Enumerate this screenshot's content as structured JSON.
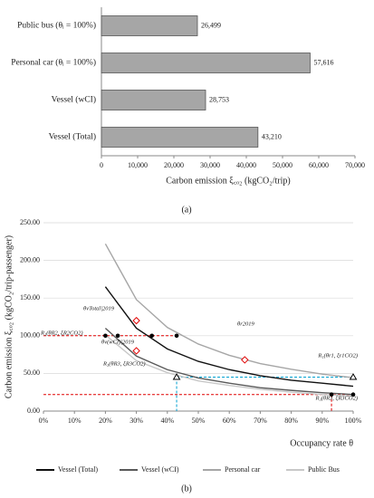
{
  "chart_data": [
    {
      "type": "bar",
      "orientation": "horizontal",
      "categories": [
        "Public bus (θᵢ = 100%)",
        "Personal car (θᵢ = 100%)",
        "Vessel (wCI)",
        "Vessel (Total)"
      ],
      "values": [
        26499,
        57616,
        28753,
        43210
      ],
      "value_labels": [
        "26,499",
        "57,616",
        "28,753",
        "43,210"
      ],
      "color": "#a6a6a6",
      "xlabel": "Carbon emission ξ꜀ₒ₂ (kgCO₂/trip)",
      "xlim": [
        0,
        70000
      ],
      "xticks": [
        0,
        {
          "value": 10000,
          "label": "10,000"
        },
        {
          "value": 20000,
          "label": "20,000"
        },
        {
          "value": 30000,
          "label": "30,000"
        },
        {
          "value": 40000,
          "label": "40,000"
        },
        {
          "value": 50000,
          "label": "50,000"
        },
        {
          "value": 60000,
          "label": "60,000"
        },
        {
          "value": 70000,
          "label": "70,000"
        }
      ],
      "caption": "(a)"
    },
    {
      "type": "line",
      "x": [
        20,
        30,
        40,
        50,
        60,
        70,
        80,
        90,
        100
      ],
      "series": [
        {
          "name": "Vessel (Total)",
          "color": "#111111",
          "values": [
            165,
            110,
            82.5,
            66,
            55,
            47,
            41,
            37,
            33
          ]
        },
        {
          "name": "Vessel (wCI)",
          "color": "#595959",
          "values": [
            110,
            73,
            55,
            44,
            37,
            31,
            27.5,
            24.4,
            22
          ]
        },
        {
          "name": "Personal car",
          "color": "#a6a6a6",
          "values": [
            222,
            148,
            111,
            89,
            74,
            63,
            55.5,
            49,
            44.4
          ]
        },
        {
          "name": "Public Bus",
          "color": "#c8c8c8",
          "values": [
            101,
            67,
            51,
            40,
            34,
            29,
            25,
            22,
            20
          ]
        }
      ],
      "reference_lines": [
        {
          "color": "#e00000",
          "x": [
            0,
            43
          ],
          "y": [
            100,
            100
          ]
        },
        {
          "color": "#e00000",
          "x": [
            0,
            100
          ],
          "y": [
            22,
            22
          ]
        },
        {
          "color": "#e00000",
          "x": [
            93,
            93
          ],
          "y": [
            22,
            0
          ]
        },
        {
          "color": "#00a0d0",
          "x": [
            43,
            100
          ],
          "y": [
            45,
            45
          ]
        },
        {
          "color": "#00a0d0",
          "x": [
            43,
            43
          ],
          "y": [
            45,
            0
          ]
        }
      ],
      "markers": [
        {
          "shape": "circle",
          "color": "#000000",
          "x": 20,
          "y": 100
        },
        {
          "shape": "circle",
          "color": "#000000",
          "x": 24,
          "y": 100
        },
        {
          "shape": "circle",
          "color": "#000000",
          "x": 35,
          "y": 100
        },
        {
          "shape": "circle",
          "color": "#000000",
          "x": 43,
          "y": 100
        },
        {
          "shape": "diamond",
          "color": "#e00000",
          "x": 30,
          "y": 120
        },
        {
          "shape": "diamond",
          "color": "#e00000",
          "x": 30,
          "y": 80
        },
        {
          "shape": "diamond",
          "color": "#e00000",
          "x": 65,
          "y": 68
        },
        {
          "shape": "triangle",
          "color": "#000000",
          "x": 43,
          "y": 45
        },
        {
          "shape": "triangle",
          "color": "#000000",
          "x": 100,
          "y": 45
        },
        {
          "shape": "circle",
          "color": "#000000",
          "x": 93,
          "y": 22
        },
        {
          "shape": "circle",
          "color": "#000000",
          "x": 100,
          "y": 22
        }
      ],
      "annotations": [
        "θvTotal|2019",
        "R₂(θR2, ξR2CO2)",
        "θv(wCI)|2019",
        "θr2019",
        "R₁(θr1, ξr1CO2)",
        "R₃(θR3, ξR3CO2)",
        "R₃(θR3, ξR3CO2)"
      ],
      "ylabel": "Carbon emission ξ꜀ₒ₂ (kgCO₂/trip-passenger)",
      "xlabel": "Occupancy rate θ",
      "xlim": [
        0,
        100
      ],
      "xticks": [
        {
          "value": 0,
          "label": "0%"
        },
        {
          "value": 10,
          "label": "10%"
        },
        {
          "value": 20,
          "label": "20%"
        },
        {
          "value": 30,
          "label": "30%"
        },
        {
          "value": 40,
          "label": "40%"
        },
        {
          "value": 50,
          "label": "50%"
        },
        {
          "value": 60,
          "label": "60%"
        },
        {
          "value": 70,
          "label": "70%"
        },
        {
          "value": 80,
          "label": "80%"
        },
        {
          "value": 90,
          "label": "90%"
        },
        {
          "value": 100,
          "label": "100%"
        }
      ],
      "ylim": [
        0,
        250
      ],
      "yticks": [
        {
          "value": 0,
          "label": "0.00"
        },
        {
          "value": 50,
          "label": "50.00"
        },
        {
          "value": 100,
          "label": "100.00"
        },
        {
          "value": 150,
          "label": "150.00"
        },
        {
          "value": 200,
          "label": "200.00"
        },
        {
          "value": 250,
          "label": "250.00"
        }
      ],
      "grid": true,
      "legend": "bottom",
      "caption": "(b)"
    }
  ]
}
